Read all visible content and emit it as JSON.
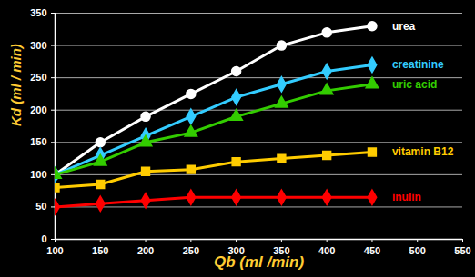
{
  "chart_data": {
    "type": "line",
    "x_label": "Qb (ml /min)",
    "y_label": "Kd (ml / min)",
    "x": [
      100,
      150,
      200,
      250,
      300,
      350,
      400,
      450
    ],
    "series": [
      {
        "name": "urea",
        "color": "#ffffff",
        "marker": "circle",
        "values": [
          100,
          150,
          190,
          225,
          260,
          300,
          320,
          330
        ]
      },
      {
        "name": "creatinine",
        "color": "#33ccff",
        "marker": "diamond",
        "values": [
          100,
          130,
          160,
          190,
          220,
          240,
          260,
          270
        ]
      },
      {
        "name": "uric acid",
        "color": "#33cc00",
        "marker": "triangle",
        "values": [
          100,
          120,
          150,
          165,
          190,
          210,
          230,
          240
        ]
      },
      {
        "name": "vitamin B12",
        "color": "#ffcc00",
        "marker": "square",
        "values": [
          80,
          85,
          105,
          108,
          120,
          125,
          130,
          135
        ]
      },
      {
        "name": "inulin",
        "color": "#ff0000",
        "marker": "diamond",
        "values": [
          50,
          55,
          60,
          65,
          65,
          65,
          65,
          65
        ]
      }
    ],
    "xlim": [
      100,
      550
    ],
    "ylim": [
      0,
      350
    ],
    "xticks": [
      100,
      150,
      200,
      250,
      300,
      350,
      400,
      450,
      500,
      550
    ],
    "yticks": [
      0,
      50,
      100,
      150,
      200,
      250,
      300,
      350
    ],
    "grid": true
  }
}
